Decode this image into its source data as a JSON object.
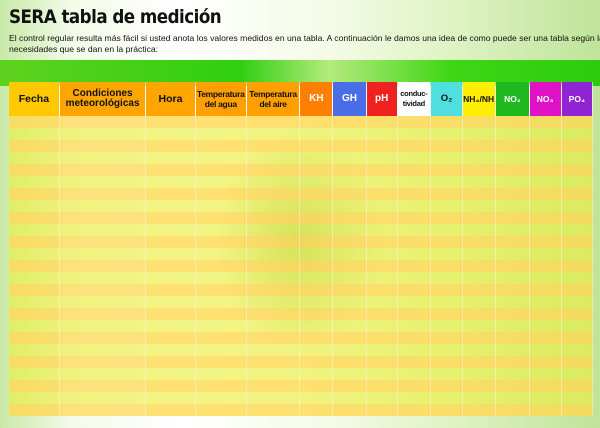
{
  "title": "SERA tabla de medición",
  "intro": "El control regular resulta más fácil si usted anota los valores medidos en una tabla. A continuación le damos una idea de como puede ser una tabla según las necesidades que se dan en la práctica:",
  "row_count": 25,
  "colors": {
    "green_band": "#2fcf10",
    "row_odd": "#ffd850",
    "row_even": "#eced3c"
  },
  "columns": [
    {
      "id": "fecha",
      "label": "Fecha",
      "bg": "#ffc800",
      "color": "#111111"
    },
    {
      "id": "cond",
      "label": "Condiciones meteorológicas",
      "bg": "#ffa500",
      "color": "#111111"
    },
    {
      "id": "hora",
      "label": "Hora",
      "bg": "#ffa500",
      "color": "#111111"
    },
    {
      "id": "tagua",
      "label": "Temperatura del agua",
      "bg": "#ffa000",
      "color": "#111111"
    },
    {
      "id": "taire",
      "label": "Temperatura del aire",
      "bg": "#ffa000",
      "color": "#111111"
    },
    {
      "id": "kh",
      "label": "KH",
      "bg": "#ff7f00",
      "color": "#ffffff"
    },
    {
      "id": "gh",
      "label": "GH",
      "bg": "#4a6ee8",
      "color": "#ffffff"
    },
    {
      "id": "ph",
      "label": "pH",
      "bg": "#ef2121",
      "color": "#ffffff"
    },
    {
      "id": "cond2",
      "label": "conduc-tividad",
      "bg": "#ffffff",
      "color": "#111111"
    },
    {
      "id": "o2",
      "label": "O₂",
      "bg": "#4fe0dd",
      "color": "#111111"
    },
    {
      "id": "nh",
      "label": "NH₄/NH₃",
      "bg": "#ffee00",
      "color": "#111111"
    },
    {
      "id": "no2",
      "label": "NO₂",
      "bg": "#1fb81f",
      "color": "#ffffff"
    },
    {
      "id": "no3",
      "label": "NO₃",
      "bg": "#e012c8",
      "color": "#ffffff"
    },
    {
      "id": "po4",
      "label": "PO₄",
      "bg": "#9124d2",
      "color": "#ffffff"
    }
  ]
}
